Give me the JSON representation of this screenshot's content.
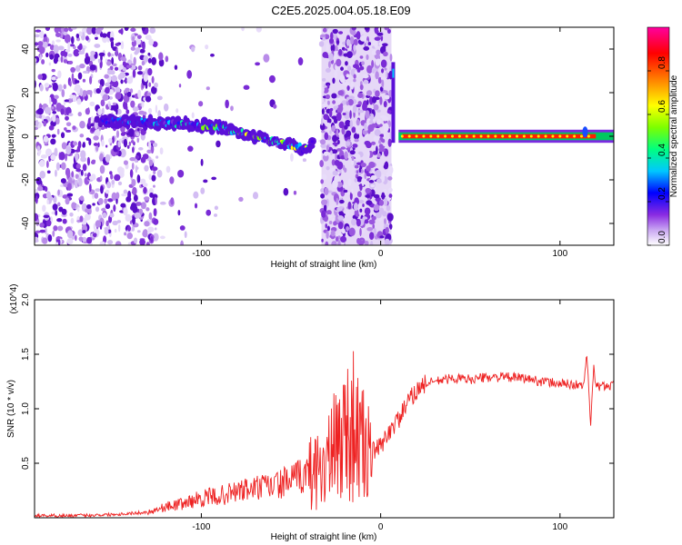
{
  "title": "C2E5.2025.004.05.18.E09",
  "chart_data": [
    {
      "type": "heatmap",
      "xlabel": "Height of straight line (km)",
      "ylabel": "Frequency (Hz)",
      "xlim": [
        -193,
        130
      ],
      "ylim": [
        -50,
        50
      ],
      "x_ticks": [
        -100,
        0,
        100
      ],
      "y_ticks": [
        -40,
        -20,
        0,
        20,
        40
      ],
      "colorbar": {
        "label": "Normalized spectral amplitude",
        "range": [
          0,
          1
        ],
        "ticks": [
          "0.0",
          "0.2",
          "0.4",
          "0.6",
          "0.8"
        ],
        "colors": [
          "#ffffff",
          "#c9a6f2",
          "#8a2be2",
          "#0000ff",
          "#00c8ff",
          "#00ff80",
          "#7cff00",
          "#ffff00",
          "#ff8000",
          "#ff0000",
          "#ff00a0"
        ]
      },
      "signal_track": [
        {
          "x": -155,
          "y": 7
        },
        {
          "x": -140,
          "y": 7
        },
        {
          "x": -120,
          "y": 6
        },
        {
          "x": -100,
          "y": 5
        },
        {
          "x": -90,
          "y": 4
        },
        {
          "x": -80,
          "y": 2
        },
        {
          "x": -70,
          "y": 0
        },
        {
          "x": -60,
          "y": -2
        },
        {
          "x": -50,
          "y": -4
        },
        {
          "x": -42,
          "y": -6
        },
        {
          "x": -38,
          "y": -3
        },
        {
          "x": 12,
          "y": 0
        },
        {
          "x": 50,
          "y": 0
        },
        {
          "x": 100,
          "y": 0
        },
        {
          "x": 130,
          "y": 0
        }
      ]
    },
    {
      "type": "line",
      "xlabel": "Height of straight line (km)",
      "ylabel": "SNR (10 * v/v)",
      "y_multiplier": "(x10^4)",
      "xlim": [
        -193,
        130
      ],
      "ylim": [
        0,
        20000
      ],
      "x_ticks": [
        -100,
        0,
        100
      ],
      "y_ticks": [
        0.5,
        1.0,
        1.5,
        2.0
      ],
      "color": "#ee2222",
      "series": [
        {
          "x": [
            -193,
            -170,
            -150,
            -130,
            -120,
            -110,
            -100,
            -90,
            -80,
            -70,
            -60,
            -50,
            -40,
            -30,
            -25,
            -20,
            -15,
            -12,
            -10,
            -5,
            0,
            5,
            10,
            15,
            20,
            25,
            30,
            40,
            50,
            60,
            70,
            80,
            90,
            100,
            110,
            113,
            115,
            117,
            119,
            120,
            125,
            130
          ],
          "y": [
            200,
            200,
            300,
            500,
            1000,
            1300,
            1800,
            2000,
            2400,
            2700,
            2900,
            3400,
            4100,
            5000,
            6500,
            8000,
            8500,
            7000,
            6500,
            6000,
            6500,
            8000,
            9000,
            10500,
            11700,
            12300,
            12500,
            12800,
            12700,
            12900,
            12900,
            12800,
            12500,
            12300,
            12200,
            12000,
            15000,
            8500,
            14000,
            12000,
            12100,
            12200
          ]
        }
      ]
    }
  ]
}
